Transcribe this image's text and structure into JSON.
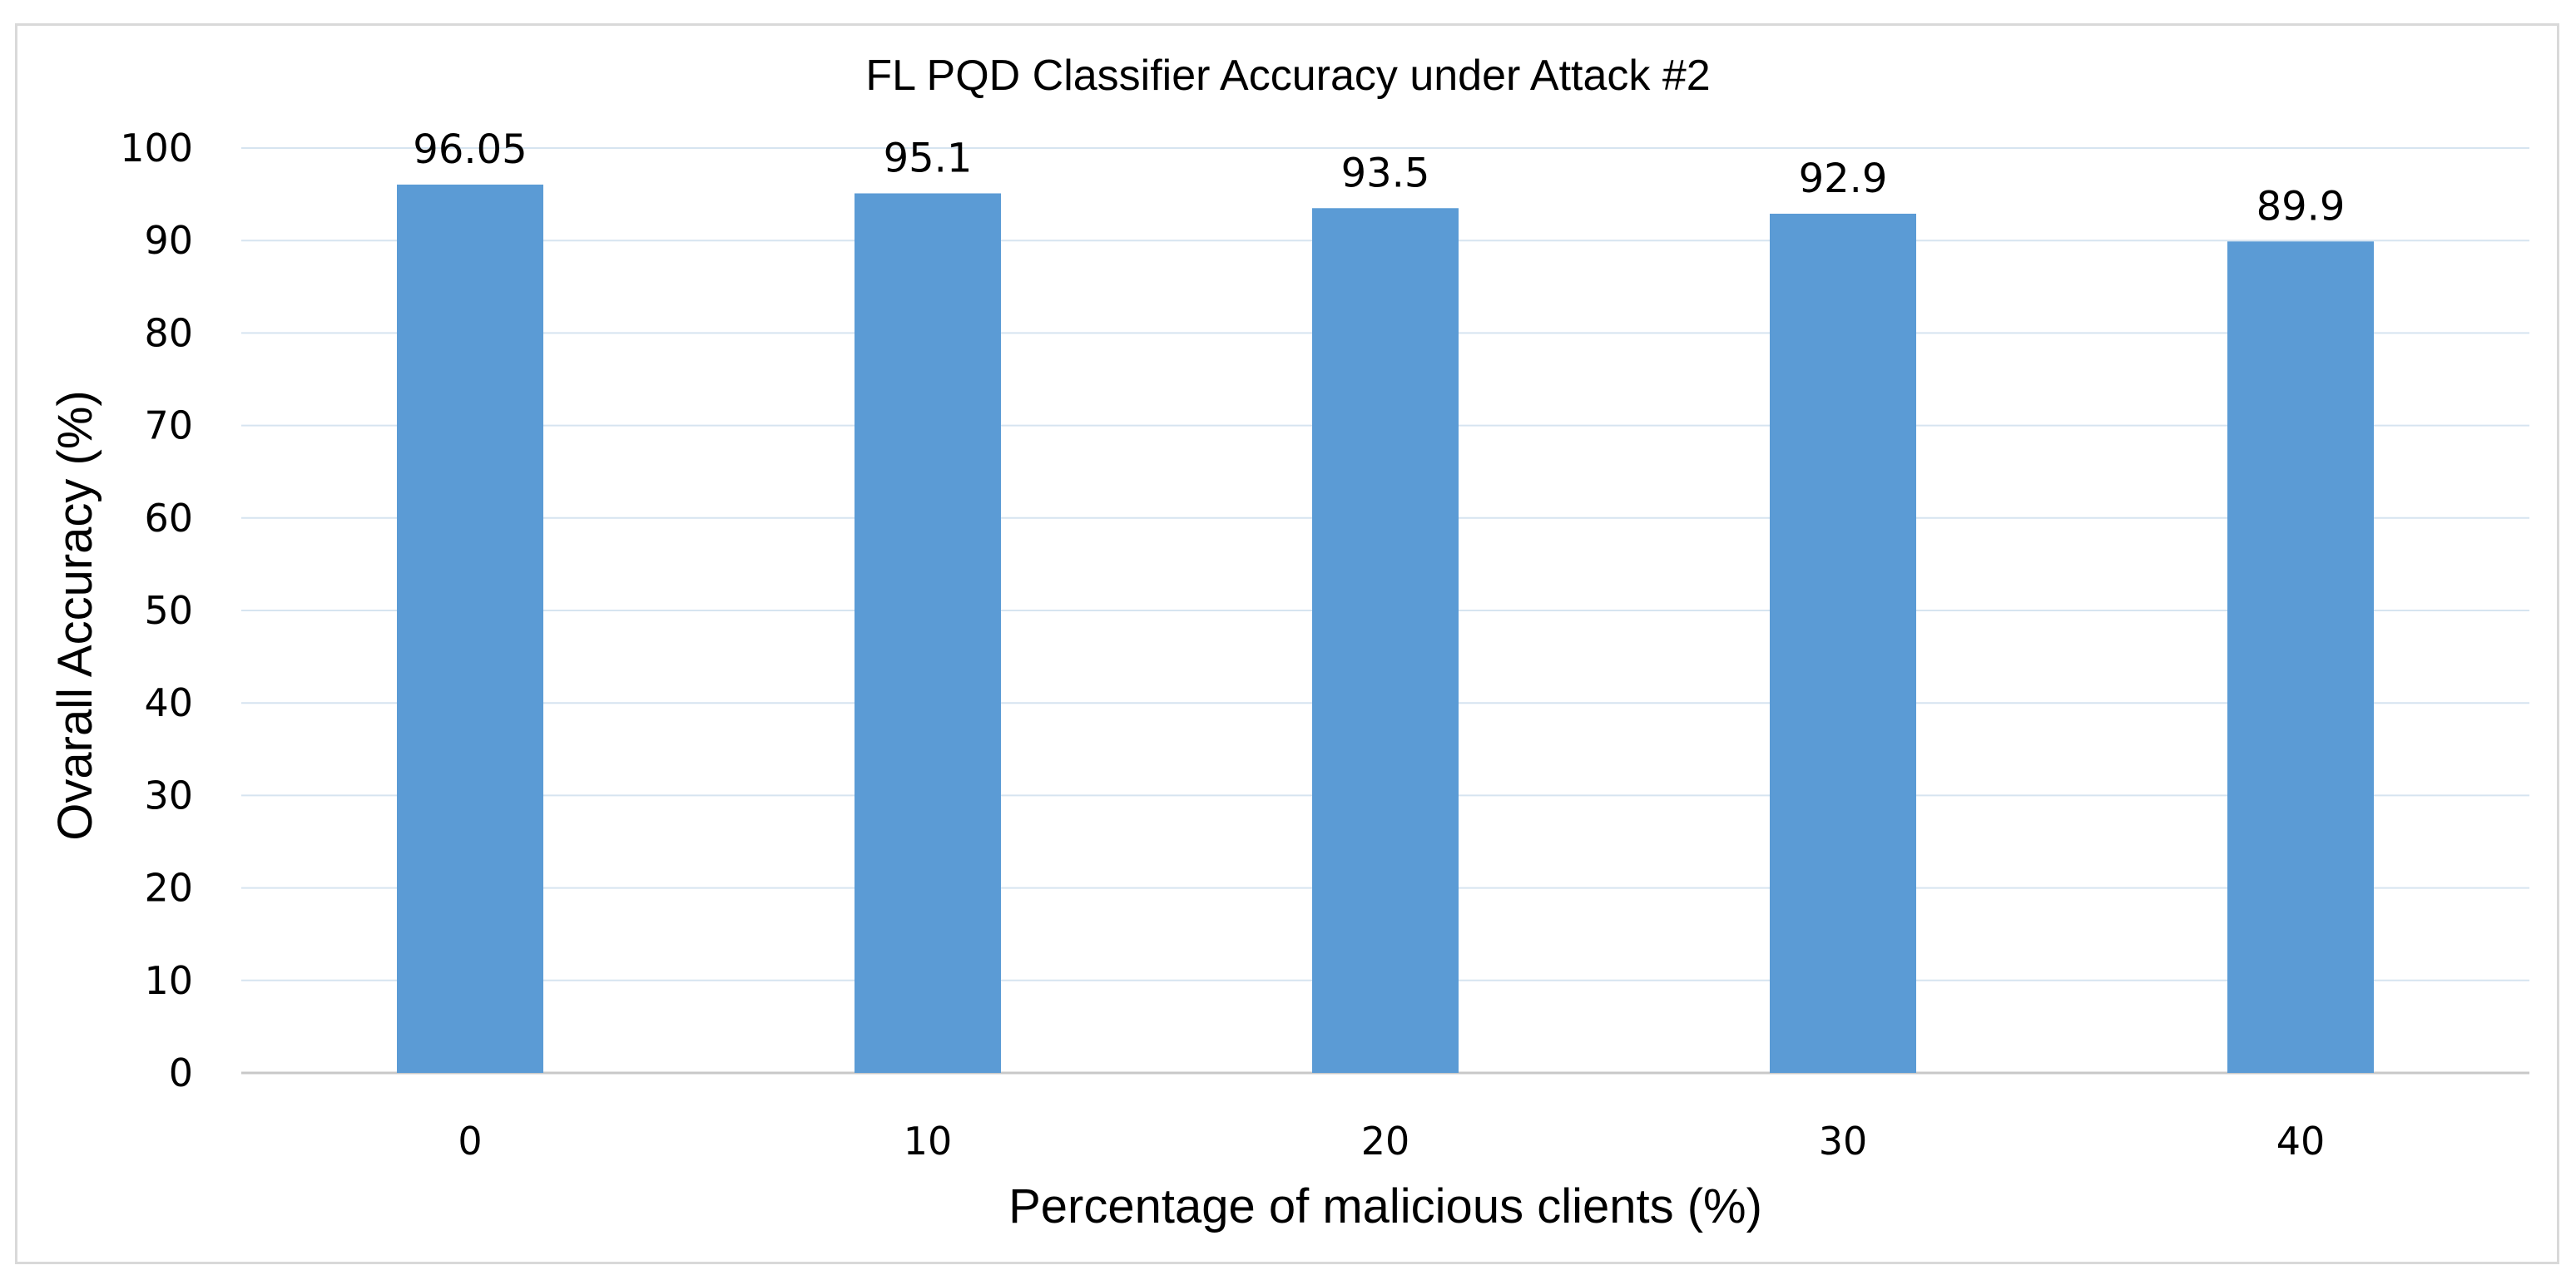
{
  "chart_data": {
    "type": "bar",
    "title": "FL PQD Classifier Accuracy under Attack #2",
    "xlabel": "Percentage of malicious clients (%)",
    "ylabel": "Ovarall Accuracy (%)",
    "categories": [
      "0",
      "10",
      "20",
      "30",
      "40"
    ],
    "values": [
      96.05,
      95.1,
      93.5,
      92.9,
      89.9
    ],
    "value_labels": [
      "96.05",
      "95.1",
      "93.5",
      "92.9",
      "89.9"
    ],
    "ylim": [
      0,
      100
    ],
    "yticks": [
      0,
      10,
      20,
      30,
      40,
      50,
      60,
      70,
      80,
      90,
      100
    ],
    "grid": true,
    "legend": "none",
    "bar_color": "#5b9bd5",
    "grid_color": "#d6e4f0"
  }
}
